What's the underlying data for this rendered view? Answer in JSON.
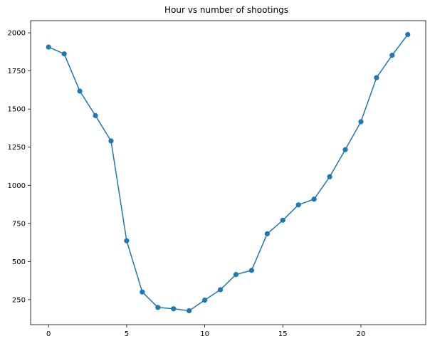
{
  "chart_data": {
    "type": "line",
    "title": "Hour vs number of shootings",
    "xlabel": "",
    "ylabel": "",
    "x": [
      0,
      1,
      2,
      3,
      4,
      5,
      6,
      7,
      8,
      9,
      10,
      11,
      12,
      13,
      14,
      15,
      16,
      17,
      18,
      19,
      20,
      21,
      22,
      23
    ],
    "series": [
      {
        "name": "",
        "values": [
          1907,
          1862,
          1618,
          1457,
          1291,
          636,
          300,
          199,
          190,
          177,
          247,
          315,
          415,
          442,
          682,
          771,
          872,
          909,
          1056,
          1234,
          1417,
          1706,
          1853,
          1989
        ]
      }
    ],
    "xlim": [
      -1.15,
      24.15
    ],
    "ylim": [
      86,
      2080
    ],
    "xticks": [
      0,
      5,
      10,
      15,
      20
    ],
    "yticks": [
      250,
      500,
      750,
      1000,
      1250,
      1500,
      1750,
      2000
    ],
    "markers": "circle",
    "grid": false,
    "legend": "none",
    "line_color": "#1f77b4",
    "marker_color": "#1f77b4"
  }
}
